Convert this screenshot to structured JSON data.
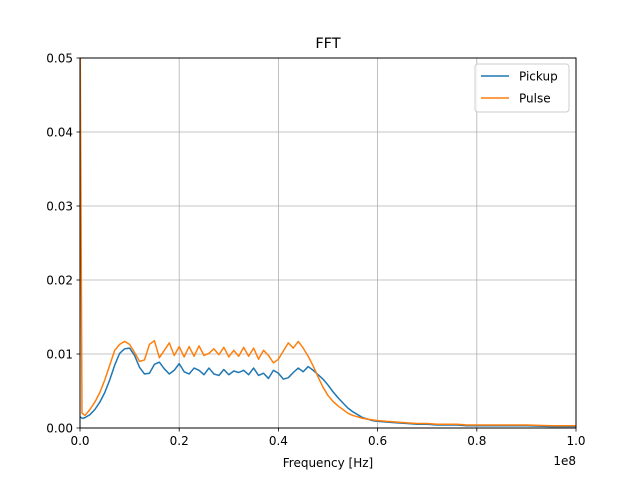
{
  "chart_data": {
    "type": "line",
    "title": "FFT",
    "xlabel": "Frequency [Hz]",
    "ylabel": "",
    "x_offset_label": "1e8",
    "xlim": [
      0,
      1.0
    ],
    "ylim": [
      0,
      0.05
    ],
    "x_unit_multiplier": 100000000,
    "grid": true,
    "legend_position": "top-right",
    "x_ticks": [
      0.0,
      0.2,
      0.4,
      0.6,
      0.8,
      1.0
    ],
    "x_tick_labels": [
      "0.0",
      "0.2",
      "0.4",
      "0.6",
      "0.8",
      "1.0"
    ],
    "y_ticks": [
      0.0,
      0.01,
      0.02,
      0.03,
      0.04,
      0.05
    ],
    "y_tick_labels": [
      "0.00",
      "0.01",
      "0.02",
      "0.03",
      "0.04",
      "0.05"
    ],
    "series": [
      {
        "name": "Pickup",
        "color": "#1f77b4",
        "x": [
          0.0,
          0.005,
          0.01,
          0.02,
          0.03,
          0.04,
          0.05,
          0.06,
          0.07,
          0.08,
          0.09,
          0.1,
          0.11,
          0.12,
          0.13,
          0.14,
          0.15,
          0.16,
          0.17,
          0.18,
          0.19,
          0.2,
          0.21,
          0.22,
          0.23,
          0.24,
          0.25,
          0.26,
          0.27,
          0.28,
          0.29,
          0.3,
          0.31,
          0.32,
          0.33,
          0.34,
          0.35,
          0.36,
          0.37,
          0.38,
          0.39,
          0.4,
          0.41,
          0.42,
          0.43,
          0.44,
          0.45,
          0.46,
          0.47,
          0.48,
          0.49,
          0.5,
          0.51,
          0.52,
          0.53,
          0.54,
          0.55,
          0.56,
          0.57,
          0.58,
          0.59,
          0.6,
          0.62,
          0.64,
          0.66,
          0.68,
          0.7,
          0.72,
          0.74,
          0.76,
          0.78,
          0.8,
          0.85,
          0.9,
          0.95,
          1.0
        ],
        "y": [
          0.0015,
          0.0013,
          0.0014,
          0.0018,
          0.0025,
          0.0035,
          0.0048,
          0.0065,
          0.0085,
          0.0101,
          0.0107,
          0.0108,
          0.0098,
          0.0082,
          0.0073,
          0.0074,
          0.0086,
          0.0089,
          0.008,
          0.0073,
          0.0078,
          0.0087,
          0.0076,
          0.0073,
          0.0081,
          0.0078,
          0.0072,
          0.0081,
          0.0073,
          0.0071,
          0.0079,
          0.0072,
          0.0077,
          0.0075,
          0.0078,
          0.0072,
          0.0081,
          0.0071,
          0.0074,
          0.0067,
          0.0078,
          0.0074,
          0.0066,
          0.0068,
          0.0075,
          0.0081,
          0.0076,
          0.0083,
          0.0078,
          0.0072,
          0.0066,
          0.0058,
          0.0049,
          0.0041,
          0.0034,
          0.0027,
          0.0022,
          0.0018,
          0.0014,
          0.0012,
          0.001,
          0.0009,
          0.0008,
          0.0007,
          0.0006,
          0.0005,
          0.0005,
          0.0004,
          0.0004,
          0.0004,
          0.0003,
          0.0003,
          0.0003,
          0.0003,
          0.0002,
          0.0002
        ]
      },
      {
        "name": "Pulse",
        "color": "#ff7f0e",
        "x": [
          0.0,
          0.0005,
          0.002,
          0.004,
          0.01,
          0.02,
          0.03,
          0.04,
          0.05,
          0.06,
          0.07,
          0.08,
          0.09,
          0.1,
          0.11,
          0.12,
          0.13,
          0.14,
          0.15,
          0.16,
          0.17,
          0.18,
          0.19,
          0.2,
          0.21,
          0.22,
          0.23,
          0.24,
          0.25,
          0.26,
          0.27,
          0.28,
          0.29,
          0.3,
          0.31,
          0.32,
          0.33,
          0.34,
          0.35,
          0.36,
          0.37,
          0.38,
          0.39,
          0.4,
          0.41,
          0.42,
          0.43,
          0.44,
          0.45,
          0.46,
          0.47,
          0.48,
          0.49,
          0.5,
          0.51,
          0.52,
          0.53,
          0.54,
          0.55,
          0.56,
          0.57,
          0.58,
          0.59,
          0.6,
          0.62,
          0.64,
          0.66,
          0.68,
          0.7,
          0.72,
          0.74,
          0.76,
          0.78,
          0.8,
          0.85,
          0.9,
          0.95,
          1.0
        ],
        "y": [
          0.05,
          0.05,
          0.03,
          0.002,
          0.0017,
          0.0025,
          0.0035,
          0.0048,
          0.0065,
          0.0085,
          0.0105,
          0.0113,
          0.0117,
          0.0113,
          0.0102,
          0.009,
          0.0092,
          0.0113,
          0.0118,
          0.0095,
          0.0105,
          0.0115,
          0.0098,
          0.011,
          0.0096,
          0.011,
          0.0097,
          0.0111,
          0.0098,
          0.0101,
          0.0107,
          0.0099,
          0.0109,
          0.0096,
          0.0105,
          0.0097,
          0.0109,
          0.0097,
          0.0108,
          0.0093,
          0.0105,
          0.0098,
          0.0088,
          0.0093,
          0.0104,
          0.0115,
          0.0108,
          0.0117,
          0.0108,
          0.0097,
          0.0084,
          0.0069,
          0.0055,
          0.0044,
          0.0036,
          0.003,
          0.0025,
          0.002,
          0.0017,
          0.0015,
          0.0013,
          0.0012,
          0.0011,
          0.001,
          0.0009,
          0.0008,
          0.0007,
          0.0006,
          0.0006,
          0.0005,
          0.0005,
          0.0005,
          0.0004,
          0.0004,
          0.0004,
          0.0004,
          0.0003,
          0.0003
        ]
      }
    ]
  }
}
